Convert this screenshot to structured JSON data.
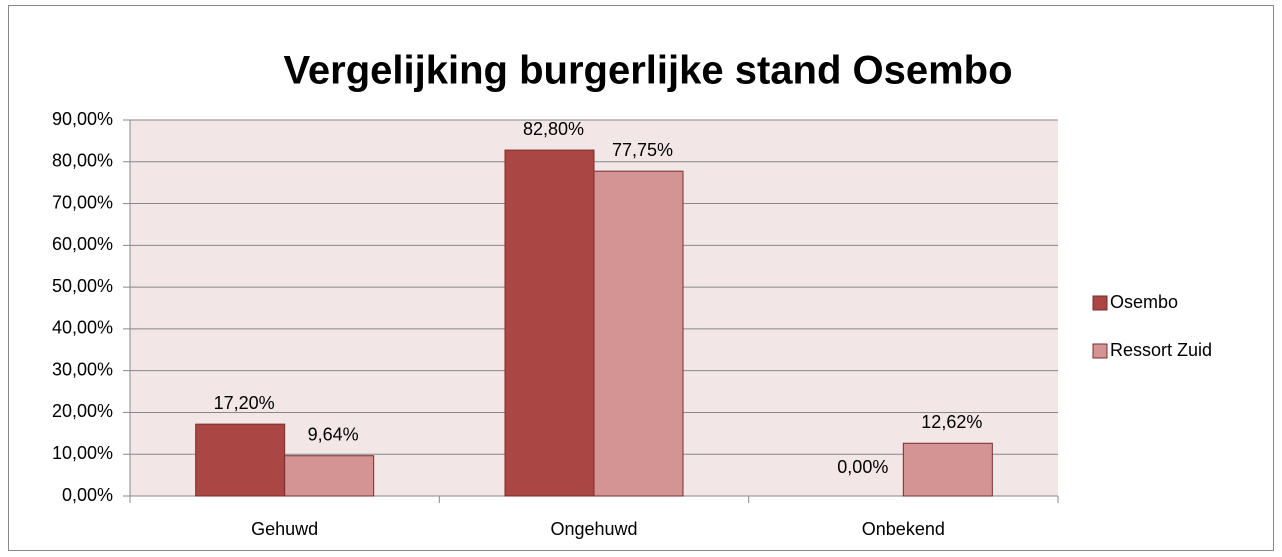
{
  "chart_data": {
    "type": "bar",
    "title": "Vergelijking burgerlijke stand Osembo",
    "categories": [
      "Gehuwd",
      "Ongehuwd",
      "Onbekend"
    ],
    "series": [
      {
        "name": "Osembo",
        "color": "#aa4644",
        "values": [
          17.2,
          82.8,
          0
        ],
        "value_labels": [
          "17,20%",
          "82,80%",
          "0,00%"
        ]
      },
      {
        "name": "Ressort Zuid",
        "color": "#d49493",
        "values": [
          9.64,
          77.75,
          12.62
        ],
        "value_labels": [
          "9,64%",
          "77,75%",
          "12,62%"
        ]
      }
    ],
    "ylim": [
      0,
      90
    ],
    "yticks": [
      {
        "value": 0,
        "label": "0,00%"
      },
      {
        "value": 10,
        "label": "10,00%"
      },
      {
        "value": 20,
        "label": "20,00%"
      },
      {
        "value": 30,
        "label": "30,00%"
      },
      {
        "value": 40,
        "label": "40,00%"
      },
      {
        "value": 50,
        "label": "50,00%"
      },
      {
        "value": 60,
        "label": "60,00%"
      },
      {
        "value": 70,
        "label": "70,00%"
      },
      {
        "value": 80,
        "label": "80,00%"
      },
      {
        "value": 90,
        "label": "90,00%"
      }
    ],
    "grid": true,
    "legend": "right"
  }
}
